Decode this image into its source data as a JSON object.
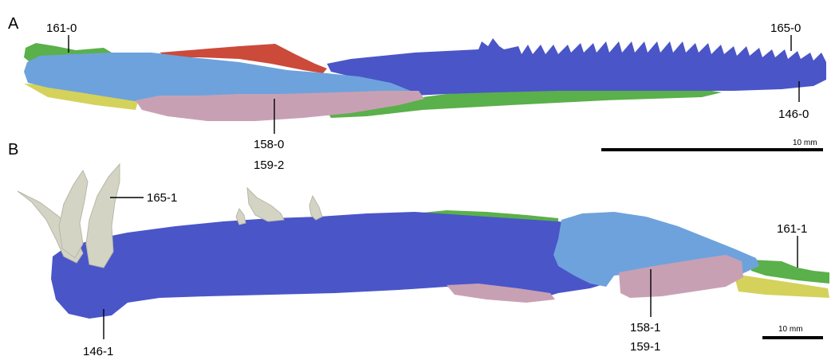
{
  "panels": [
    {
      "letter": "A",
      "labels": [
        "161-0",
        "165-0",
        "146-0",
        "158-0",
        "159-2"
      ],
      "scale_bar": "10 mm"
    },
    {
      "letter": "B",
      "labels": [
        "165-1",
        "161-1",
        "158-1",
        "159-1",
        "146-1"
      ],
      "scale_bar": "10 mm"
    }
  ],
  "colors": {
    "dentary": "#4a55c8",
    "splenial": "#6ea2dc",
    "surangular": "#c8a0b4",
    "angular": "#5ab04a",
    "prearticular": "#d4d25a",
    "coronoid": "#cc4a3a",
    "teeth": "#d4d4c4"
  }
}
